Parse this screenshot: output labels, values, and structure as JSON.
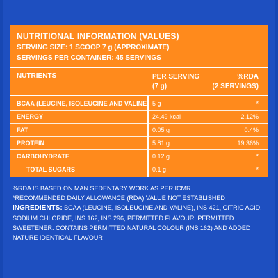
{
  "panel": {
    "title": "NUTRITIONAL INFORMATION (VALUES)",
    "serving_size": "SERVING SIZE: 1 SCOOP 7 g (APPROXIMATE)",
    "servings_per_container": "SERVINGS PER CONTAINER: 45 SERVINGS"
  },
  "table": {
    "headers": {
      "nutrients": "NUTRIENTS",
      "per_serving_line1": "PER SERVING",
      "per_serving_line2": "(7 g)",
      "rda_line1": "%RDA",
      "rda_line2": "(2 SERVINGS)"
    },
    "rows": [
      {
        "name": "BCAA (LEUCINE, ISOLEUCINE AND VALINE)",
        "value": "5 g",
        "rda": "*"
      },
      {
        "name": "ENERGY",
        "value": "24.49 kcal",
        "rda": "2.12%"
      },
      {
        "name": "FAT",
        "value": "0.05 g",
        "rda": "0.4%"
      },
      {
        "name": "PROTEIN",
        "value": "5.81 g",
        "rda": "19.36%"
      },
      {
        "name": "CARBOHYDRATE",
        "value": "0.12 g",
        "rda": "*"
      },
      {
        "name": "TOTAL SUGARS",
        "value": "0.1 g",
        "rda": "*"
      }
    ]
  },
  "notes": {
    "rda_basis": "%RDA IS BASED ON MAN SEDENTARY WORK AS PER ICMR",
    "rda_not_established": "*RECOMMENDED DAILY ALLOWANCE (RDA) VALUE NOT ESTABLISHED",
    "ingredients_label": "INGREDIENTS:",
    "ingredients_text": " BCAA (LEUCINE, ISOLEUCINE AND VALINE), INS 421, CITRIC ACID, SODIUM CHLORIDE, INS 162, INS 296, PERMITTED FLAVOUR, PERMITTED SWEETENER. CONTAINS PERMITTED NATURAL COLOUR (INS 162) AND ADDED NATURE IDENTICAL FLAVOUR"
  },
  "colors": {
    "background": "#1e4fc0",
    "panel": "#ff8a1c",
    "text": "#ffffff"
  }
}
